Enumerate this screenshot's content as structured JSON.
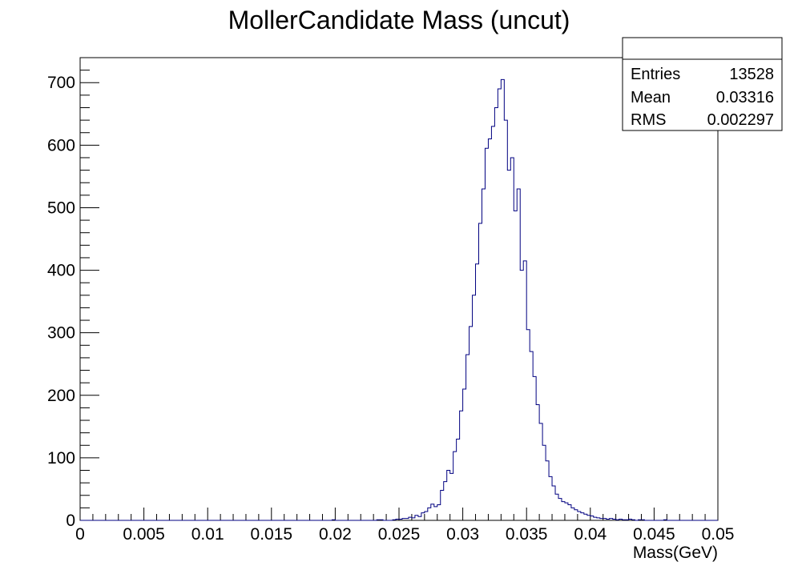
{
  "chart_data": {
    "type": "histogram",
    "title": "MollerCandidate Mass (uncut)",
    "xlabel": "Mass(GeV)",
    "ylabel": "",
    "xlim": [
      0,
      0.05
    ],
    "ylim": [
      0,
      740
    ],
    "x_ticks": [
      0,
      0.005,
      0.01,
      0.015,
      0.02,
      0.025,
      0.03,
      0.035,
      0.04,
      0.045,
      0.05
    ],
    "x_tick_labels": [
      "0",
      "0.005",
      "0.01",
      "0.015",
      "0.02",
      "0.025",
      "0.03",
      "0.035",
      "0.04",
      "0.045",
      "0.05"
    ],
    "y_ticks": [
      0,
      100,
      200,
      300,
      400,
      500,
      600,
      700
    ],
    "y_tick_labels": [
      "0",
      "100",
      "200",
      "300",
      "400",
      "500",
      "600",
      "700"
    ],
    "grid": false,
    "line_color": "#000080",
    "bins": {
      "n": 200,
      "low": 0,
      "high": 0.05,
      "values": [
        0,
        0,
        0,
        0,
        0,
        0,
        0,
        0,
        0,
        0,
        0,
        0,
        0,
        0,
        0,
        0,
        0,
        0,
        0,
        0,
        0,
        0,
        0,
        0,
        0,
        0,
        0,
        0,
        0,
        0,
        0,
        0,
        0,
        0,
        0,
        0,
        0,
        0,
        0,
        0,
        0,
        0,
        0,
        0,
        0,
        0,
        0,
        0,
        0,
        0,
        0,
        0,
        0,
        0,
        0,
        0,
        0,
        0,
        0,
        0,
        0,
        0,
        0,
        0,
        0,
        0,
        0,
        0,
        0,
        0,
        0,
        0,
        0,
        0,
        0,
        0,
        0,
        0,
        0,
        1,
        0,
        0,
        0,
        0,
        0,
        0,
        0,
        0,
        0,
        0,
        0,
        0,
        0,
        1,
        1,
        0,
        0,
        0,
        1,
        2,
        2,
        3,
        3,
        5,
        4,
        8,
        6,
        12,
        14,
        20,
        26,
        22,
        25,
        48,
        62,
        80,
        75,
        110,
        130,
        175,
        210,
        265,
        310,
        360,
        410,
        475,
        530,
        595,
        610,
        630,
        660,
        690,
        705,
        640,
        560,
        580,
        495,
        530,
        400,
        415,
        305,
        270,
        230,
        185,
        155,
        120,
        95,
        70,
        55,
        42,
        35,
        30,
        28,
        25,
        20,
        17,
        14,
        12,
        10,
        8,
        7,
        5,
        4,
        3,
        3,
        2,
        3,
        2,
        1,
        2,
        1,
        1,
        2,
        1,
        0,
        1,
        1,
        0,
        0,
        0,
        0,
        0,
        0,
        1,
        0,
        0,
        0,
        0,
        0,
        0,
        0,
        0,
        0,
        0,
        0,
        0,
        0,
        0,
        0,
        0
      ]
    },
    "stats": {
      "title": "",
      "rows": [
        {
          "label": "Entries",
          "value": "13528"
        },
        {
          "label": "Mean",
          "value": "0.03316"
        },
        {
          "label": "RMS",
          "value": "0.002297"
        }
      ]
    }
  }
}
